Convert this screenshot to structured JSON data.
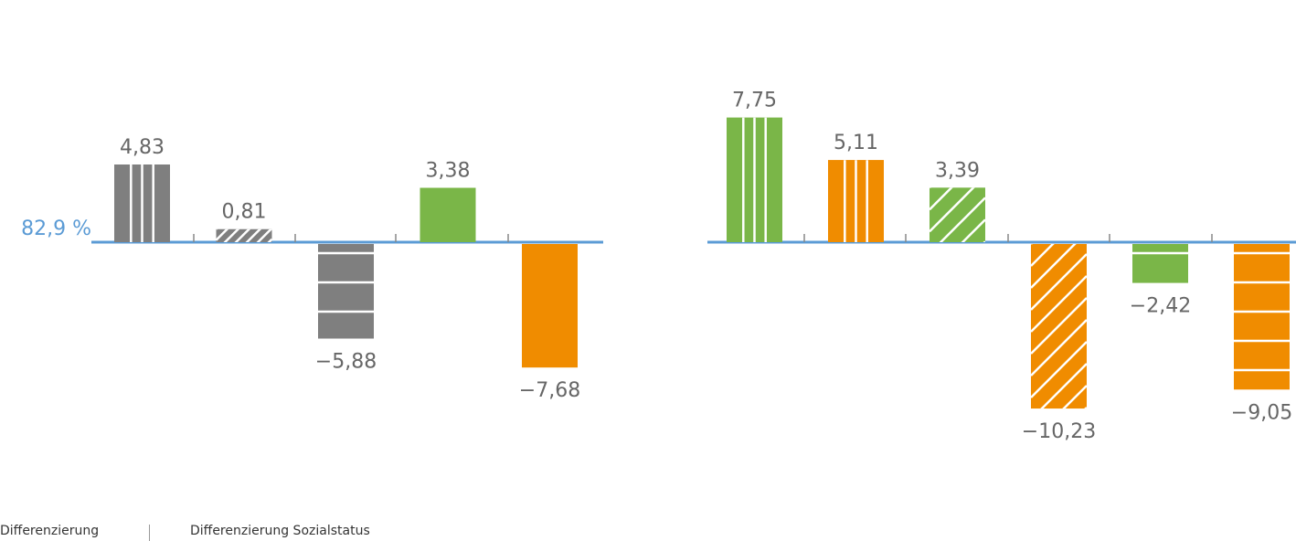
{
  "baseline_label": "82,9 %",
  "footer": {
    "left": "Differenzierung",
    "right": "Differenzierung Sozialstatus"
  },
  "colors": {
    "gray": "#7f7f7f",
    "green": "#7ab648",
    "orange": "#f08c00",
    "baseline": "#5b9bd5"
  },
  "chart_data": [
    {
      "type": "bar",
      "baseline": 82.9,
      "bars": [
        {
          "value": 4.83,
          "label": "4,83",
          "color": "gray",
          "pattern": "vertical"
        },
        {
          "value": 0.81,
          "label": "0,81",
          "color": "gray",
          "pattern": "diagonal"
        },
        {
          "value": -5.88,
          "label": "−5,88",
          "color": "gray",
          "pattern": "horizontal"
        },
        {
          "value": 3.38,
          "label": "3,38",
          "color": "green",
          "pattern": "solid"
        },
        {
          "value": -7.68,
          "label": "−7,68",
          "color": "orange",
          "pattern": "solid"
        }
      ]
    },
    {
      "type": "bar",
      "bars": [
        {
          "value": 7.75,
          "label": "7,75",
          "color": "green",
          "pattern": "vertical"
        },
        {
          "value": 5.11,
          "label": "5,11",
          "color": "orange",
          "pattern": "vertical"
        },
        {
          "value": 3.39,
          "label": "3,39",
          "color": "green",
          "pattern": "diagonal"
        },
        {
          "value": -10.23,
          "label": "−10,23",
          "color": "orange",
          "pattern": "diagonal"
        },
        {
          "value": -2.42,
          "label": "−2,42",
          "color": "green",
          "pattern": "horizontal"
        },
        {
          "value": -9.05,
          "label": "−9,05",
          "color": "orange",
          "pattern": "horizontal"
        }
      ]
    }
  ]
}
